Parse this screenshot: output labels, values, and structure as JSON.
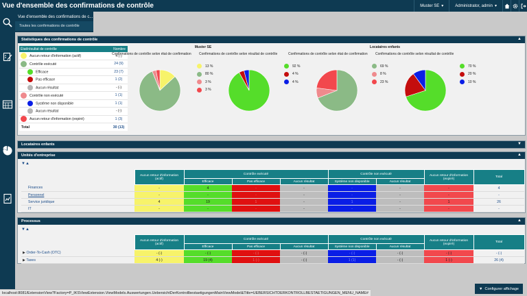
{
  "header": {
    "title": "Vue d'ensemble des confirmations de contrôle",
    "client": "Muster SE",
    "user": "Administrator, admin"
  },
  "breadcrumb": {
    "current": "Vue d'ensemble des confirmations de c...",
    "sub": "Toutes les confirmations de contrôle"
  },
  "stats": {
    "title": "Statistiques des confirmations de contrôle",
    "col_state": "État/résultat de contrôle",
    "col_num": "Nombre",
    "rows": [
      {
        "label": "Aucun retour d'information (actif)",
        "num": "4 (-)",
        "color": "#f7f36a"
      },
      {
        "label": "Contrôle exécuté",
        "num": "24 (9)",
        "color": "#8bba86"
      },
      {
        "label": "Efficace",
        "num": "23 (7)",
        "color": "#55dd2a"
      },
      {
        "label": "Pas efficace",
        "num": "1 (2)",
        "color": "#c40d0d"
      },
      {
        "label": "Aucun résultat",
        "num": "- (-)",
        "color": "#b5b5b5"
      },
      {
        "label": "Contrôle non exécuté",
        "num": "1 (1)",
        "color": "#ef8a8d"
      },
      {
        "label": "Système non disponible",
        "num": "1 (1)",
        "color": "#0a1ee6"
      },
      {
        "label": "Aucun résultat",
        "num": "- (-)",
        "color": "#b5b5b5"
      },
      {
        "label": "Aucun retour d'information (expiré)",
        "num": "1 (3)",
        "color": "#f2484d"
      }
    ],
    "total_label": "Total",
    "total_num": "30 (13)"
  },
  "charts": {
    "group1": "Muster SE",
    "group2": "Locataires enfants",
    "sub_state": "Confirmations de contrôle selon état de confirmation",
    "sub_result": "Confirmations de contrôle selon résultat de contrôle"
  },
  "chart_data": [
    {
      "type": "pie",
      "title": "Confirmations de contrôle selon état de confirmation",
      "group": "Muster SE",
      "series": [
        {
          "values": [
            13,
            80,
            3,
            3
          ]
        }
      ],
      "labels": [
        "13 %",
        "80 %",
        "3 %",
        "3 %"
      ],
      "colors": [
        "#f7f36a",
        "#8bba86",
        "#ef8a8d",
        "#f2484d"
      ]
    },
    {
      "type": "pie",
      "title": "Confirmations de contrôle selon résultat de contrôle",
      "group": "Muster SE",
      "series": [
        {
          "values": [
            92,
            4,
            4
          ]
        }
      ],
      "labels": [
        "92 %",
        "4 %",
        "4 %"
      ],
      "colors": [
        "#55dd2a",
        "#c40d0d",
        "#0a1ee6"
      ]
    },
    {
      "type": "pie",
      "title": "Confirmations de contrôle selon état de confirmation",
      "group": "Locataires enfants",
      "series": [
        {
          "values": [
            69,
            8,
            23
          ]
        }
      ],
      "labels": [
        "69 %",
        "8 %",
        "23 %"
      ],
      "colors": [
        "#8bba86",
        "#ef8a8d",
        "#f2484d"
      ]
    },
    {
      "type": "pie",
      "title": "Confirmations de contrôle selon résultat de contrôle",
      "group": "Locataires enfants",
      "series": [
        {
          "values": [
            70,
            20,
            10
          ]
        }
      ],
      "labels": [
        "70 %",
        "20 %",
        "10 %"
      ],
      "colors": [
        "#55dd2a",
        "#c40d0d",
        "#0a1ee6"
      ]
    }
  ],
  "locataires": {
    "title": "Locataires enfants"
  },
  "units": {
    "title": "Unités d'entreprise",
    "headers": {
      "noinfo_active": "Aucun retour d'information (actif)",
      "executed": "Contrôle exécuté",
      "efficace": "Efficace",
      "pas_efficace": "Pas efficace",
      "aucun_resultat": "Aucun résultat",
      "not_executed": "Contrôle non exécuté",
      "sys_na": "Système non disponible",
      "aucun_resultat2": "Aucun résultat",
      "noinfo_expired": "Aucun retour d'information (expiré)",
      "total": "Total"
    },
    "rows": [
      {
        "name": "Finances",
        "v": [
          "-",
          "4",
          "-",
          "-",
          "-",
          "-",
          "-"
        ],
        "total": "4"
      },
      {
        "name": "Personnel",
        "v": [
          "-",
          "-",
          "-",
          "-",
          "-",
          "-",
          "-"
        ],
        "total": "-"
      },
      {
        "name": "Service juridique",
        "v": [
          "4",
          "19",
          "1",
          "-",
          "1",
          "-",
          "1"
        ],
        "total": "26"
      },
      {
        "name": "IT",
        "v": [
          "-",
          "-",
          "-",
          "-",
          "-",
          "-",
          "-"
        ],
        "total": "-"
      }
    ]
  },
  "processes": {
    "title": "Processus",
    "rows": [
      {
        "name": "Order-To-Cash (OTC)",
        "v": [
          "- (-)",
          "- (-)",
          "- (-)",
          "- (-)",
          "- (-)",
          "- (-)",
          "- (-)"
        ],
        "total": "- (-)"
      },
      {
        "name": "Taxes",
        "v": [
          "4 (-)",
          "19 (4)",
          "1 (-)",
          "- (-)",
          "1 (1)",
          "- (-)",
          "1 (-)"
        ],
        "total": "26 (4)"
      }
    ]
  },
  "footer": {
    "url": "localhost:8081/ExtensionView?Factory=P_IKSViewExtension.ViewModels.Auswertungen.UebersichtDerKontrollbestaetigungenMainViewModel&Title=UEBERSICHTDERKONTROLLBESTAETIGUNGEN_MENU_NAME#",
    "configure": "Configurer affichage"
  }
}
